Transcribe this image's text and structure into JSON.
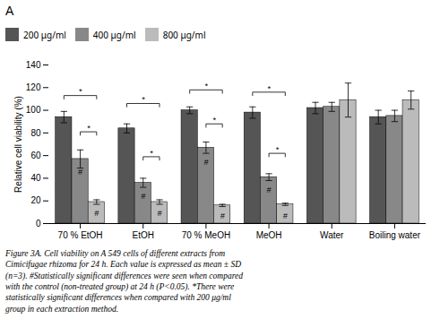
{
  "chart_data": {
    "type": "bar",
    "title": "A",
    "ylabel": "Relative cell viability (%)",
    "categories": [
      "70 % EtOH",
      "EtOH",
      "70 % MeOH",
      "MeOH",
      "Water",
      "Boiling water"
    ],
    "series": [
      {
        "name": "200 μg/ml",
        "color": "#555555",
        "values": [
          94,
          84,
          100,
          98,
          102,
          94
        ],
        "errors": [
          5,
          4,
          3,
          5,
          5,
          6
        ]
      },
      {
        "name": "400 μg/ml",
        "color": "#888888",
        "values": [
          57,
          36,
          67,
          41,
          103,
          95
        ],
        "errors": [
          8,
          4,
          5,
          3,
          4,
          5
        ]
      },
      {
        "name": "800 μg/ml",
        "color": "#bbbbbb",
        "values": [
          19,
          19,
          16,
          17,
          109,
          109
        ],
        "errors": [
          2,
          2,
          1,
          1,
          15,
          8
        ]
      }
    ],
    "ylim": [
      0,
      140
    ],
    "yticks": [
      0,
      20,
      40,
      60,
      80,
      100,
      120,
      140
    ],
    "legend": "upper center",
    "brackets": [
      {
        "category": "70 % EtOH",
        "from": "200 μg/ml",
        "to": "800 μg/ml",
        "y": 113,
        "text": "*"
      },
      {
        "category": "70 % EtOH",
        "from": "400 μg/ml",
        "to": "800 μg/ml",
        "y": 81,
        "text": "*"
      },
      {
        "category": "EtOH",
        "from": "200 μg/ml",
        "to": "800 μg/ml",
        "y": 106,
        "text": "*"
      },
      {
        "category": "EtOH",
        "from": "400 μg/ml",
        "to": "800 μg/ml",
        "y": 59,
        "text": "*"
      },
      {
        "category": "70 % MeOH",
        "from": "200 μg/ml",
        "to": "800 μg/ml",
        "y": 118,
        "text": "*"
      },
      {
        "category": "70 % MeOH",
        "from": "400 μg/ml",
        "to": "800 μg/ml",
        "y": 88,
        "text": "*"
      },
      {
        "category": "MeOH",
        "from": "200 μg/ml",
        "to": "800 μg/ml",
        "y": 116,
        "text": "*"
      },
      {
        "category": "MeOH",
        "from": "400 μg/ml",
        "to": "800 μg/ml",
        "y": 62,
        "text": "*"
      }
    ],
    "annotations": [
      {
        "category": "70 % EtOH",
        "series": "400 μg/ml",
        "y": 43,
        "text": "#"
      },
      {
        "category": "70 % EtOH",
        "series": "800 μg/ml",
        "y": 7,
        "text": "#"
      },
      {
        "category": "EtOH",
        "series": "400 μg/ml",
        "y": 22,
        "text": "#"
      },
      {
        "category": "EtOH",
        "series": "800 μg/ml",
        "y": 7,
        "text": "#"
      },
      {
        "category": "70 % MeOH",
        "series": "400 μg/ml",
        "y": 52,
        "text": "#"
      },
      {
        "category": "70 % MeOH",
        "series": "800 μg/ml",
        "y": 4,
        "text": "#"
      },
      {
        "category": "MeOH",
        "series": "400 μg/ml",
        "y": 27,
        "text": "#"
      },
      {
        "category": "MeOH",
        "series": "800 μg/ml",
        "y": 4,
        "text": "#"
      }
    ],
    "caption": "Figure 3A.  Cell viability on A 549 cells of different extracts from\nCimicifugae rhizoma for 24 h. Each value is expressed as mean ± SD\n(n=3). #Statistically significant differences were seen when compared\nwith the control (non-treated group) at 24 h (P<0.05). *There were\nstatistically significant differences when compared with 200 μg/ml\ngroup in each extraction method."
  }
}
